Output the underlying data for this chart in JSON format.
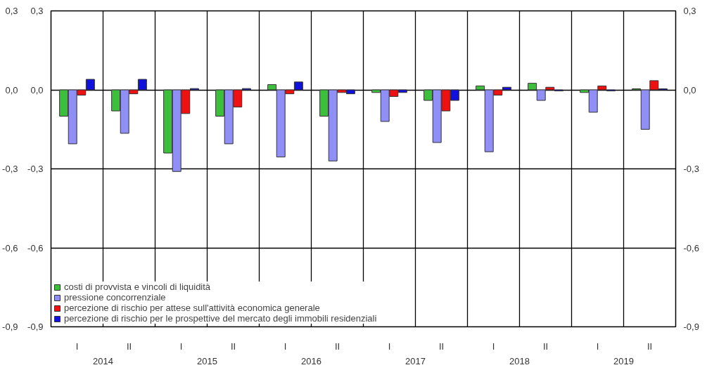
{
  "chart_data": {
    "type": "bar",
    "categories": [
      "I",
      "II",
      "I",
      "II",
      "I",
      "II",
      "I",
      "II",
      "I",
      "II",
      "I",
      "II"
    ],
    "series": [
      {
        "name": "costi di provvista e vincoli di liquidità",
        "color": "#3cc03c",
        "values": [
          -0.1,
          -0.08,
          -0.24,
          -0.1,
          0.02,
          -0.1,
          -0.01,
          -0.04,
          0.015,
          0.025,
          -0.01,
          0.004
        ]
      },
      {
        "name": "pressione concorrenziale",
        "color": "#8f8ff5",
        "values": [
          -0.205,
          -0.165,
          -0.31,
          -0.205,
          -0.255,
          -0.27,
          -0.12,
          -0.2,
          -0.235,
          -0.04,
          -0.085,
          -0.15
        ]
      },
      {
        "name": "percezione di rischio per attese sull'attività economica generale",
        "color": "#ee1111",
        "values": [
          -0.02,
          -0.015,
          -0.09,
          -0.065,
          -0.015,
          -0.01,
          -0.025,
          -0.08,
          -0.02,
          0.01,
          0.015,
          0.035
        ]
      },
      {
        "name": "percezione di rischio per le prospettive del mercato degli immobili residenziali",
        "color": "#1111dd",
        "values": [
          0.04,
          0.04,
          0.005,
          0.005,
          0.03,
          -0.015,
          -0.01,
          -0.04,
          0.01,
          -0.004,
          -0.004,
          0.004
        ]
      }
    ],
    "ylim": [
      -0.9,
      0.3
    ],
    "yticks": [
      {
        "value": 0.3,
        "label": "0,3"
      },
      {
        "value": 0.0,
        "label": "0,0"
      },
      {
        "value": -0.3,
        "label": "-0,3"
      },
      {
        "value": -0.6,
        "label": "-0,6"
      },
      {
        "value": -0.9,
        "label": "-0,9"
      }
    ],
    "y2lim": [
      -0.9,
      0.3
    ],
    "y2ticks": [
      {
        "value": 0.3,
        "label": "0,3"
      },
      {
        "value": 0.0,
        "label": "0,0"
      },
      {
        "value": -0.3,
        "label": "-0,3"
      },
      {
        "value": -0.6,
        "label": "-0,6"
      },
      {
        "value": -0.9,
        "label": "-0,9"
      }
    ],
    "annotations": [
      "2014",
      "2015",
      "2016",
      "2017",
      "2018",
      "2019"
    ],
    "grid": true,
    "legend": "bottom left"
  }
}
